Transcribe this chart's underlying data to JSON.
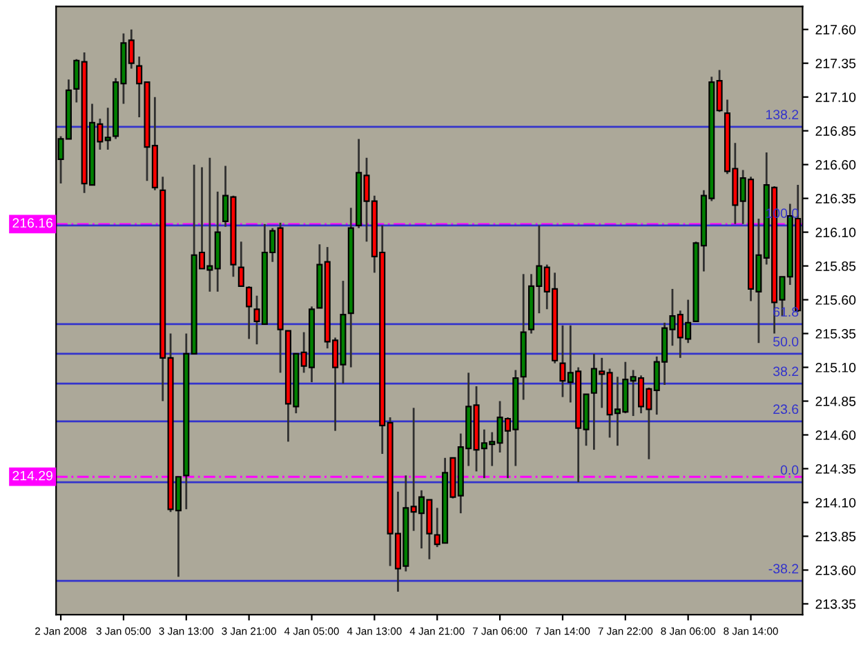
{
  "chart_data": {
    "type": "candlestick",
    "categories": [
      "2 Jan 2008",
      null,
      null,
      null,
      null,
      null,
      null,
      null,
      "3 Jan 05:00",
      null,
      null,
      null,
      null,
      null,
      null,
      null,
      "3 Jan 13:00",
      null,
      null,
      null,
      null,
      null,
      null,
      null,
      "3 Jan 21:00",
      null,
      null,
      null,
      null,
      null,
      null,
      null,
      "4 Jan 05:00",
      null,
      null,
      null,
      null,
      null,
      null,
      null,
      "4 Jan 13:00",
      null,
      null,
      null,
      null,
      null,
      null,
      null,
      "4 Jan 21:00",
      null,
      null,
      null,
      null,
      null,
      null,
      null,
      "7 Jan 06:00",
      null,
      null,
      null,
      null,
      null,
      null,
      null,
      "7 Jan 14:00",
      null,
      null,
      null,
      null,
      null,
      null,
      null,
      "7 Jan 22:00",
      null,
      null,
      null,
      null,
      null,
      null,
      null,
      "8 Jan 06:00",
      null,
      null,
      null,
      null,
      null,
      null,
      null,
      "8 Jan 14:00",
      null,
      null,
      null,
      null,
      null,
      null
    ],
    "ohlc": [
      [
        216.64,
        216.81,
        216.46,
        216.79
      ],
      [
        216.79,
        217.23,
        216.79,
        217.15
      ],
      [
        217.16,
        217.38,
        217.06,
        217.37
      ],
      [
        217.36,
        217.43,
        216.39,
        216.46
      ],
      [
        216.45,
        217.05,
        216.45,
        216.91
      ],
      [
        216.9,
        216.94,
        216.71,
        216.77
      ],
      [
        216.78,
        217.02,
        216.71,
        216.8
      ],
      [
        216.81,
        217.24,
        216.79,
        217.21
      ],
      [
        217.2,
        217.57,
        217.05,
        217.5
      ],
      [
        217.52,
        217.6,
        217.31,
        217.35
      ],
      [
        217.33,
        217.4,
        216.95,
        217.2
      ],
      [
        217.21,
        217.21,
        216.48,
        216.73
      ],
      [
        216.74,
        217.1,
        216.41,
        216.43
      ],
      [
        216.41,
        216.51,
        214.85,
        215.17
      ],
      [
        215.17,
        215.35,
        214.03,
        214.05
      ],
      [
        214.04,
        214.29,
        213.55,
        214.29
      ],
      [
        214.3,
        215.35,
        214.05,
        215.2
      ],
      [
        215.2,
        216.6,
        215.2,
        215.93
      ],
      [
        215.95,
        216.58,
        215.83,
        215.83
      ],
      [
        215.82,
        216.65,
        215.66,
        215.85
      ],
      [
        215.83,
        216.4,
        215.66,
        216.1
      ],
      [
        216.18,
        216.59,
        216.14,
        216.37
      ],
      [
        216.36,
        216.37,
        215.77,
        215.86
      ],
      [
        215.84,
        216.03,
        215.7,
        215.7
      ],
      [
        215.69,
        215.7,
        215.31,
        215.55
      ],
      [
        215.53,
        215.63,
        215.27,
        215.44
      ],
      [
        215.42,
        216.16,
        215.42,
        215.95
      ],
      [
        215.95,
        216.13,
        215.88,
        216.11
      ],
      [
        216.13,
        216.17,
        215.06,
        215.38
      ],
      [
        215.37,
        215.37,
        214.55,
        214.83
      ],
      [
        214.81,
        215.2,
        214.76,
        215.2
      ],
      [
        215.21,
        215.36,
        215.06,
        215.11
      ],
      [
        215.1,
        215.55,
        214.99,
        215.53
      ],
      [
        215.54,
        216.01,
        215.54,
        215.86
      ],
      [
        215.88,
        215.99,
        215.24,
        215.29
      ],
      [
        215.3,
        215.32,
        214.63,
        215.1
      ],
      [
        215.12,
        215.74,
        214.98,
        215.49
      ],
      [
        215.5,
        216.28,
        215.1,
        216.13
      ],
      [
        216.15,
        216.79,
        216.13,
        216.54
      ],
      [
        216.52,
        216.65,
        216.03,
        216.33
      ],
      [
        216.33,
        216.37,
        215.8,
        215.92
      ],
      [
        215.95,
        216.15,
        214.46,
        214.67
      ],
      [
        214.69,
        214.73,
        213.63,
        213.87
      ],
      [
        213.87,
        214.18,
        213.44,
        213.61
      ],
      [
        213.63,
        214.3,
        213.59,
        214.06
      ],
      [
        214.07,
        214.8,
        213.89,
        214.03
      ],
      [
        214.02,
        214.19,
        213.76,
        214.14
      ],
      [
        214.12,
        214.12,
        213.68,
        213.87
      ],
      [
        213.86,
        214.06,
        213.77,
        213.79
      ],
      [
        213.8,
        214.43,
        213.8,
        214.32
      ],
      [
        214.43,
        214.43,
        214.13,
        214.14
      ],
      [
        214.15,
        214.61,
        214.02,
        214.51
      ],
      [
        214.5,
        215.06,
        214.37,
        214.81
      ],
      [
        214.82,
        214.96,
        214.33,
        214.49
      ],
      [
        214.5,
        214.64,
        214.28,
        214.54
      ],
      [
        214.53,
        214.62,
        214.37,
        214.55
      ],
      [
        214.54,
        214.85,
        214.47,
        214.73
      ],
      [
        214.72,
        214.73,
        214.28,
        214.63
      ],
      [
        214.64,
        215.08,
        214.37,
        215.02
      ],
      [
        215.03,
        215.79,
        214.86,
        215.36
      ],
      [
        215.38,
        215.79,
        215.35,
        215.7
      ],
      [
        215.7,
        216.15,
        215.5,
        215.85
      ],
      [
        215.84,
        215.86,
        215.53,
        215.66
      ],
      [
        215.68,
        215.8,
        215.13,
        215.15
      ],
      [
        215.13,
        215.41,
        214.88,
        215.0
      ],
      [
        214.99,
        215.41,
        214.84,
        215.06
      ],
      [
        215.07,
        215.1,
        214.25,
        214.65
      ],
      [
        214.64,
        214.9,
        214.52,
        214.9
      ],
      [
        214.91,
        215.2,
        214.49,
        215.09
      ],
      [
        215.07,
        215.17,
        214.8,
        215.05
      ],
      [
        215.06,
        215.09,
        214.58,
        214.75
      ],
      [
        214.76,
        215.03,
        214.52,
        214.79
      ],
      [
        214.77,
        215.14,
        214.76,
        215.01
      ],
      [
        215.0,
        215.08,
        214.74,
        215.03
      ],
      [
        215.02,
        215.04,
        214.76,
        214.81
      ],
      [
        214.94,
        214.95,
        214.42,
        214.79
      ],
      [
        214.93,
        215.18,
        214.75,
        215.14
      ],
      [
        215.14,
        215.43,
        214.97,
        215.39
      ],
      [
        215.38,
        215.68,
        215.26,
        215.48
      ],
      [
        215.49,
        215.52,
        215.17,
        215.32
      ],
      [
        215.31,
        215.6,
        215.28,
        215.43
      ],
      [
        215.44,
        216.03,
        215.44,
        216.02
      ],
      [
        216.0,
        216.41,
        215.81,
        216.37
      ],
      [
        216.35,
        217.25,
        216.33,
        217.21
      ],
      [
        217.22,
        217.3,
        216.99,
        217.0
      ],
      [
        216.98,
        217.08,
        216.53,
        216.55
      ],
      [
        216.57,
        216.76,
        216.16,
        216.3
      ],
      [
        216.33,
        216.56,
        216.16,
        216.5
      ],
      [
        216.49,
        216.51,
        215.59,
        215.68
      ],
      [
        215.66,
        216.2,
        215.28,
        215.93
      ],
      [
        215.91,
        216.69,
        215.86,
        216.45
      ],
      [
        216.43,
        216.44,
        215.35,
        215.58
      ],
      [
        215.6,
        215.77,
        215.48,
        215.77
      ],
      [
        215.77,
        216.31,
        215.71,
        216.22
      ],
      [
        216.2,
        216.45,
        215.51,
        215.52
      ]
    ],
    "ylim": [
      213.27,
      217.77
    ],
    "yticks": [
      {
        "value": 213.35,
        "label": "213.35"
      },
      {
        "value": 213.6,
        "label": "213.60"
      },
      {
        "value": 213.85,
        "label": "213.85"
      },
      {
        "value": 214.1,
        "label": "214.10"
      },
      {
        "value": 214.35,
        "label": "214.35"
      },
      {
        "value": 214.6,
        "label": "214.60"
      },
      {
        "value": 214.85,
        "label": "214.85"
      },
      {
        "value": 215.1,
        "label": "215.10"
      },
      {
        "value": 215.35,
        "label": "215.35"
      },
      {
        "value": 215.6,
        "label": "215.60"
      },
      {
        "value": 215.85,
        "label": "215.85"
      },
      {
        "value": 216.1,
        "label": "216.10"
      },
      {
        "value": 216.35,
        "label": "216.35"
      },
      {
        "value": 216.6,
        "label": "216.60"
      },
      {
        "value": 216.85,
        "label": "216.85"
      },
      {
        "value": 217.1,
        "label": "217.10"
      },
      {
        "value": 217.35,
        "label": "217.35"
      },
      {
        "value": 217.6,
        "label": "217.60"
      }
    ],
    "ref_lines": [
      {
        "axis": "y",
        "value": 216.16,
        "label": "216.16",
        "color": "#ff00ff",
        "line_style": "dashed"
      },
      {
        "axis": "y",
        "value": 214.29,
        "label": "214.29",
        "color": "#ff00ff",
        "line_style": "dashed"
      },
      {
        "axis": "y",
        "value": 216.88,
        "color": "#3333cc",
        "line_style": "solid"
      },
      {
        "axis": "y",
        "value": 216.15,
        "color": "#3333cc",
        "line_style": "solid"
      },
      {
        "axis": "y",
        "value": 215.42,
        "color": "#3333cc",
        "line_style": "solid"
      },
      {
        "axis": "y",
        "value": 215.2,
        "color": "#3333cc",
        "line_style": "solid"
      },
      {
        "axis": "y",
        "value": 214.98,
        "color": "#3333cc",
        "line_style": "solid"
      },
      {
        "axis": "y",
        "value": 214.7,
        "color": "#3333cc",
        "line_style": "solid"
      },
      {
        "axis": "y",
        "value": 214.25,
        "color": "#3333cc",
        "line_style": "solid"
      },
      {
        "axis": "y",
        "value": 213.52,
        "color": "#3333cc",
        "line_style": "solid"
      }
    ],
    "annotations": [
      {
        "text": "138.2",
        "y": 216.88
      },
      {
        "text": "100.0",
        "y": 216.15
      },
      {
        "text": "61.8",
        "y": 215.42
      },
      {
        "text": "50.0",
        "y": 215.2
      },
      {
        "text": "38.2",
        "y": 214.98
      },
      {
        "text": "23.6",
        "y": 214.7
      },
      {
        "text": "0.0",
        "y": 214.25
      },
      {
        "text": "-38.2",
        "y": 213.52
      }
    ]
  }
}
